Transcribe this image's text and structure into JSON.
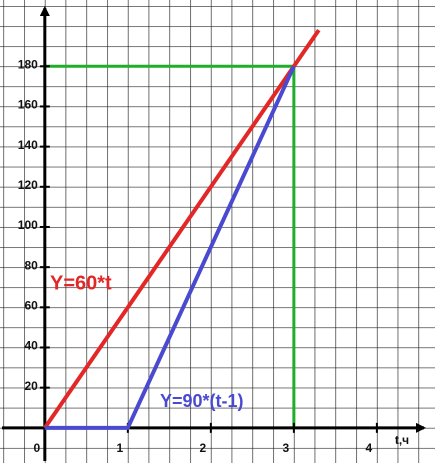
{
  "chart_data": {
    "type": "line",
    "x_label": "t,ч",
    "series": [
      {
        "name": "Y=60*t",
        "color": "#e32626",
        "x": [
          0,
          3.3
        ],
        "values": [
          0,
          198
        ]
      },
      {
        "name": "Y=90*(t-1)",
        "color": "#4a4ad0",
        "x": [
          0,
          1,
          3
        ],
        "values": [
          0,
          0,
          180
        ]
      }
    ],
    "guide_lines": {
      "color": "#1fae2a",
      "x": [
        0,
        3,
        3
      ],
      "values": [
        180,
        180,
        0
      ]
    },
    "xlim": [
      -0.54,
      4.7
    ],
    "ylim": [
      -17.5,
      213
    ],
    "xticks": [
      0,
      1,
      2,
      3,
      4
    ],
    "yticks": [
      20,
      40,
      60,
      80,
      100,
      120,
      140,
      160,
      180
    ],
    "grid": {
      "x_step": 0.25,
      "y_step": 10
    }
  }
}
